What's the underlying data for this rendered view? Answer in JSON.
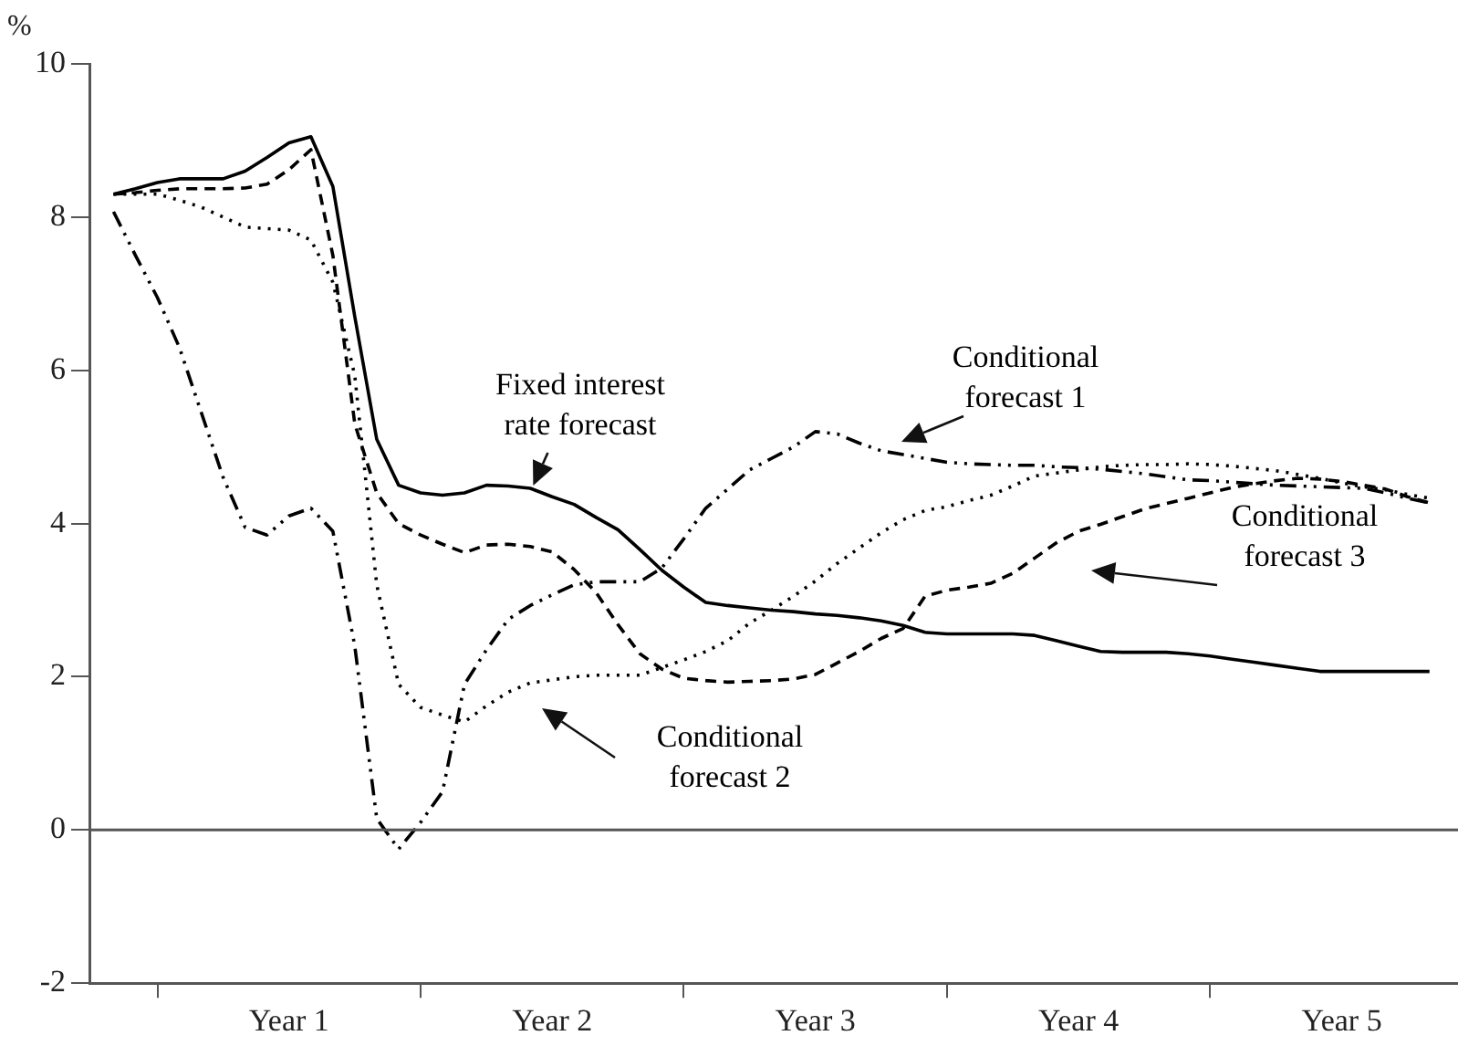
{
  "chart_data": {
    "type": "line",
    "ylabel": "%",
    "categories": [
      null,
      null,
      null,
      null,
      null,
      null,
      null,
      null,
      "Year 1",
      null,
      null,
      null,
      null,
      null,
      null,
      null,
      null,
      null,
      null,
      null,
      "Year 2",
      null,
      null,
      null,
      null,
      null,
      null,
      null,
      null,
      null,
      null,
      null,
      "Year 3",
      null,
      null,
      null,
      null,
      null,
      null,
      null,
      null,
      null,
      null,
      null,
      "Year 4",
      null,
      null,
      null,
      null,
      null,
      null,
      null,
      null,
      null,
      null,
      null,
      "Year 5",
      null,
      null,
      null,
      null
    ],
    "ylim": [
      -2,
      10
    ],
    "yticks": [
      -2,
      0,
      2,
      4,
      6,
      8,
      10
    ],
    "grid": false,
    "legend": false,
    "marker": "none",
    "ref_lines": [
      {
        "axis": "y",
        "value": 0,
        "color": "#555555"
      }
    ],
    "series": [
      {
        "name": "Fixed interest rate forecast",
        "color": "#000000",
        "line_style": "solid",
        "values": [
          8.3,
          8.37,
          8.45,
          8.5,
          8.5,
          8.5,
          8.6,
          8.78,
          8.97,
          9.05,
          8.4,
          6.7,
          5.1,
          4.5,
          4.4,
          4.37,
          4.4,
          4.5,
          4.49,
          4.46,
          4.35,
          4.25,
          4.08,
          3.92,
          3.66,
          3.39,
          3.17,
          2.97,
          2.93,
          2.9,
          2.87,
          2.85,
          2.82,
          2.8,
          2.77,
          2.73,
          2.67,
          2.58,
          2.56,
          2.56,
          2.56,
          2.56,
          2.54,
          2.47,
          2.4,
          2.33,
          2.32,
          2.32,
          2.32,
          2.3,
          2.27,
          2.23,
          2.19,
          2.15,
          2.11,
          2.07,
          2.07,
          2.07,
          2.07,
          2.07,
          2.07
        ]
      },
      {
        "name": "Conditional forecast 1",
        "color": "#000000",
        "line_style": "dashdot",
        "values": [
          8.07,
          7.5,
          6.95,
          6.3,
          5.45,
          4.6,
          3.95,
          3.85,
          4.1,
          4.2,
          3.9,
          2.4,
          0.15,
          -0.25,
          0.1,
          0.5,
          1.9,
          2.35,
          2.75,
          2.93,
          3.07,
          3.2,
          3.24,
          3.24,
          3.24,
          3.42,
          3.8,
          4.2,
          4.45,
          4.7,
          4.85,
          5.0,
          5.2,
          5.17,
          5.05,
          4.95,
          4.9,
          4.85,
          4.8,
          4.78,
          4.77,
          4.76,
          4.76,
          4.74,
          4.73,
          4.71,
          4.68,
          4.65,
          4.61,
          4.57,
          4.56,
          4.54,
          4.52,
          4.5,
          4.49,
          4.48,
          4.47,
          4.46,
          4.4,
          4.33,
          4.27
        ]
      },
      {
        "name": "Conditional forecast 2",
        "color": "#000000",
        "line_style": "dotted",
        "values": [
          8.3,
          8.3,
          8.3,
          8.22,
          8.13,
          8.0,
          7.87,
          7.85,
          7.83,
          7.7,
          7.15,
          5.93,
          3.2,
          1.9,
          1.6,
          1.5,
          1.41,
          1.62,
          1.8,
          1.92,
          1.96,
          2.0,
          2.02,
          2.02,
          2.02,
          2.12,
          2.22,
          2.33,
          2.47,
          2.7,
          2.87,
          3.05,
          3.25,
          3.48,
          3.68,
          3.88,
          4.05,
          4.17,
          4.22,
          4.3,
          4.37,
          4.49,
          4.62,
          4.66,
          4.7,
          4.74,
          4.76,
          4.77,
          4.77,
          4.78,
          4.77,
          4.75,
          4.72,
          4.69,
          4.64,
          4.59,
          4.53,
          4.48,
          4.44,
          4.38,
          4.33
        ]
      },
      {
        "name": "Conditional forecast 3",
        "color": "#000000",
        "line_style": "dashed",
        "values": [
          8.3,
          8.32,
          8.35,
          8.37,
          8.37,
          8.37,
          8.38,
          8.43,
          8.62,
          8.88,
          7.5,
          5.3,
          4.4,
          4.0,
          3.85,
          3.73,
          3.62,
          3.72,
          3.73,
          3.7,
          3.63,
          3.4,
          3.1,
          2.68,
          2.3,
          2.1,
          1.98,
          1.95,
          1.93,
          1.94,
          1.95,
          1.97,
          2.03,
          2.18,
          2.33,
          2.5,
          2.63,
          3.05,
          3.13,
          3.17,
          3.22,
          3.35,
          3.55,
          3.75,
          3.9,
          3.99,
          4.09,
          4.19,
          4.26,
          4.33,
          4.4,
          4.47,
          4.52,
          4.56,
          4.59,
          4.58,
          4.55,
          4.5,
          4.45,
          4.35,
          4.27
        ]
      }
    ]
  }
}
